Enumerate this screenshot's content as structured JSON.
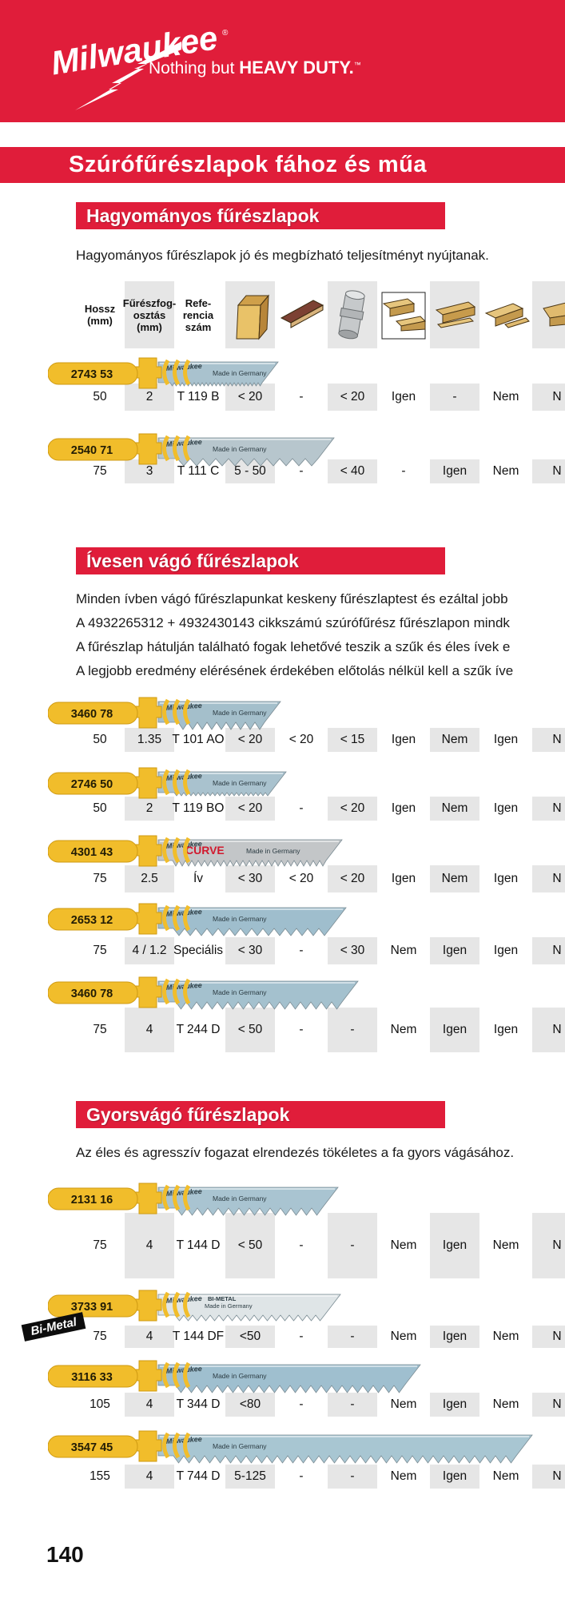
{
  "brand": {
    "logo_text": "Milwaukee",
    "registered": "®",
    "tagline_regular": "Nothing but ",
    "tagline_bold": "HEAVY DUTY.",
    "tagline_tm": "™"
  },
  "banner": {
    "title": "Szúrófűrészlapok fához és műa"
  },
  "page_number": "140",
  "colors": {
    "red": "#e01d3a",
    "cell_gray": "#e6e6e6",
    "tag_yellow": "#f1bd2b",
    "text": "#111111"
  },
  "table_header": {
    "columns": [
      {
        "name": "length",
        "lines": [
          "Hossz",
          "(mm)"
        ]
      },
      {
        "name": "tooth-pitch",
        "lines": [
          "Fűrészfog-",
          "osztás",
          "(mm)"
        ]
      },
      {
        "name": "reference",
        "lines": [
          "Refe-",
          "rencia",
          "szám"
        ]
      }
    ],
    "icons": [
      "wood-block-icon",
      "laminate-panel-icon",
      "pipe-icon",
      "wood-beams-icon",
      "wood-board-icon",
      "wood-profile-icon",
      "wood-partial-icon"
    ]
  },
  "blade_labels": {
    "logo": "Milwaukee",
    "origin": "Made in Germany",
    "curve": "CURVE",
    "bimetal": "BI-METAL"
  },
  "sections": [
    {
      "title": "Hagyományos fűrészlapok",
      "description": [
        "Hagyományos fűrészlapok jó és megbízható teljesítményt nyújtanak."
      ],
      "rows": [
        {
          "blade": {
            "number": "2743 53",
            "end": 350,
            "body": "#a9c2ce",
            "pitch": 5,
            "extra": null
          },
          "values": [
            "50",
            "2",
            "T 119 B",
            "< 20",
            "-",
            "< 20",
            "Igen",
            "-",
            "Nem",
            "N"
          ]
        },
        {
          "blade": {
            "number": "2540 71",
            "end": 420,
            "body": "#b7c6cd",
            "pitch": 16,
            "extra": null
          },
          "values": [
            "75",
            "3",
            "T 111 C",
            "5 - 50",
            "-",
            "< 40",
            "-",
            "Igen",
            "Nem",
            "N"
          ]
        }
      ]
    },
    {
      "title": "Ívesen vágó fűrészlapok",
      "description": [
        "Minden ívben vágó fűrészlapunkat keskeny fűrészlaptest és ezáltal jobb",
        "A 4932265312 + 4932430143 cikkszámú szúrófűrész fűrészlapon mindk",
        "A fűrészlap hátulján található fogak lehetővé teszik a szűk és éles ívek e",
        "A legjobb eredmény elérésének érdekében előtolás nélkül kell a szűk íve"
      ],
      "rows": [
        {
          "blade": {
            "number": "3460 78",
            "end": 353,
            "body": "#a4bfcb",
            "pitch": 12,
            "extra": null
          },
          "values": [
            "50",
            "1.35",
            "T 101 AO",
            "< 20",
            "< 20",
            "< 15",
            "Igen",
            "Nem",
            "Igen",
            "N"
          ]
        },
        {
          "blade": {
            "number": "2746 50",
            "end": 360,
            "body": "#a9c2ce",
            "pitch": 6,
            "extra": null
          },
          "values": [
            "50",
            "2",
            "T 119 BO",
            "< 20",
            "-",
            "< 20",
            "Igen",
            "Nem",
            "Igen",
            "N"
          ]
        },
        {
          "blade": {
            "number": "4301 43",
            "end": 430,
            "body": "#c3c6c8",
            "pitch": 8,
            "extra": "curve"
          },
          "values": [
            "75",
            "2.5",
            "Ív",
            "< 30",
            "< 20",
            "< 20",
            "Igen",
            "Nem",
            "Igen",
            "N"
          ]
        },
        {
          "blade": {
            "number": "2653 12",
            "end": 435,
            "body": "#9fbecd",
            "pitch": 14,
            "extra": null
          },
          "values": [
            "75",
            "4 / 1.2",
            "Speciális",
            "< 30",
            "-",
            "< 30",
            "Nem",
            "Igen",
            "Igen",
            "N"
          ]
        },
        {
          "blade": {
            "number": "3460 78",
            "end": 450,
            "body": "#a4c1ce",
            "pitch": 13,
            "extra": null
          },
          "values": [
            "75",
            "4",
            "T 244 D",
            "< 50",
            "-",
            "-",
            "Nem",
            "Igen",
            "Igen",
            "N"
          ]
        }
      ]
    },
    {
      "title": "Gyorsvágó fűrészlapok",
      "description": [
        "Az éles és agresszív fogazat elrendezés tökéletes a fa gyors vágásához."
      ],
      "rows": [
        {
          "blade": {
            "number": "2131 16",
            "end": 425,
            "body": "#a9c4d1",
            "pitch": 13,
            "extra": null
          },
          "values": [
            "75",
            "4",
            "T 144 D",
            "< 50",
            "-",
            "-",
            "Nem",
            "Igen",
            "Nem",
            "N"
          ]
        },
        {
          "blade": {
            "number": "3733 91",
            "end": 428,
            "body": "#dfe5e7",
            "pitch": 11,
            "extra": "bimetal"
          },
          "side_tag": "Bi-Metal",
          "values": [
            "75",
            "4",
            "T 144 DF",
            "<50",
            "-",
            "-",
            "Nem",
            "Igen",
            "Nem",
            "N"
          ]
        },
        {
          "blade": {
            "number": "3116 33",
            "end": 528,
            "body": "#9fbfcf",
            "pitch": 13,
            "extra": null
          },
          "values": [
            "105",
            "4",
            "T 344 D",
            "<80",
            "-",
            "-",
            "Nem",
            "Igen",
            "Nem",
            "N"
          ]
        },
        {
          "blade": {
            "number": "3547 45",
            "end": 668,
            "body": "#a8c6d2",
            "pitch": 13,
            "extra": null
          },
          "values": [
            "155",
            "4",
            "T 744 D",
            "5-125",
            "-",
            "-",
            "Nem",
            "Igen",
            "Nem",
            "N"
          ]
        }
      ]
    }
  ]
}
